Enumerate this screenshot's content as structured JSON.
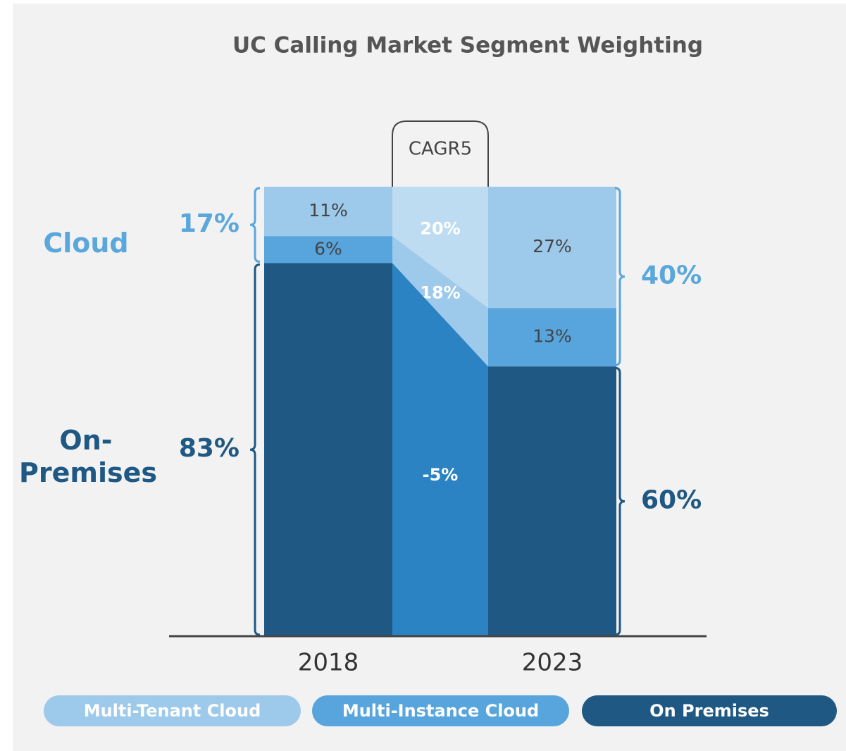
{
  "chart_data": {
    "type": "bar",
    "stacked": true,
    "title": "UC Calling Market Segment Weighting",
    "categories": [
      "2018",
      "2023"
    ],
    "ylim": [
      0,
      100
    ],
    "series": [
      {
        "name": "Multi-Tenant Cloud",
        "color": "#9dc9ea",
        "connector_color": "#bedcf1",
        "values": [
          11,
          27
        ],
        "value_labels": [
          "11%",
          "27%"
        ]
      },
      {
        "name": "Multi-Instance Cloud",
        "color": "#57a5dc",
        "connector_color": "#9dcaeb",
        "values": [
          6,
          13
        ],
        "value_labels": [
          "6%",
          "13%"
        ]
      },
      {
        "name": "On Premises",
        "color": "#1f5883",
        "connector_color": "#2b83c3",
        "values": [
          83,
          60
        ]
      }
    ],
    "cagr": {
      "label": "CAGR5",
      "values": [
        20,
        18,
        -5
      ],
      "value_labels": [
        "20%",
        "18%",
        "-5%"
      ]
    },
    "groups": [
      {
        "name": "Cloud",
        "color": "#5aa7dc",
        "values": [
          17,
          40
        ],
        "value_labels": [
          "17%",
          "40%"
        ]
      },
      {
        "name": "On-Premises",
        "color": "#1f5883",
        "values": [
          83,
          60
        ],
        "value_labels": [
          "83%",
          "60%"
        ]
      }
    ]
  }
}
